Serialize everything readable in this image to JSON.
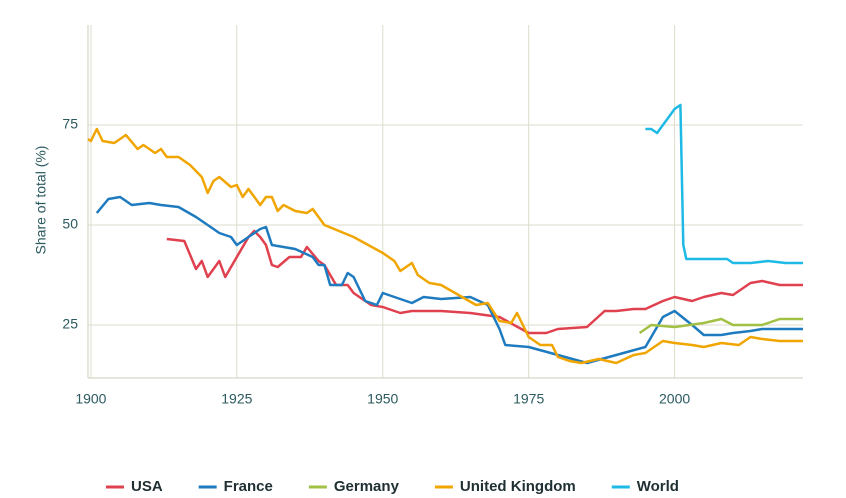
{
  "chart_data": {
    "type": "line",
    "y_label": "Share of total (%)",
    "xlim": [
      1899.5,
      2022
    ],
    "ylim": [
      11.75,
      100
    ],
    "xticks": [
      1900,
      1925,
      1950,
      1975,
      2000
    ],
    "yticks": [
      25,
      50,
      75
    ],
    "grid": true,
    "legend": "bottom",
    "series": [
      {
        "name": "USA",
        "color": "#e0414f",
        "x": [
          1913,
          1916,
          1918,
          1919,
          1920,
          1922,
          1923,
          1925,
          1927,
          1928,
          1929,
          1930,
          1931,
          1932,
          1934,
          1936,
          1937,
          1939,
          1940,
          1942,
          1944,
          1945,
          1948,
          1950,
          1953,
          1955,
          1960,
          1965,
          1970,
          1975,
          1978,
          1980,
          1985,
          1988,
          1990,
          1993,
          1995,
          1998,
          2000,
          2003,
          2005,
          2008,
          2010,
          2013,
          2015,
          2018,
          2022
        ],
        "values": [
          46.5,
          46,
          39,
          41,
          37,
          41,
          37,
          42,
          47,
          48.5,
          47,
          45,
          40,
          39.5,
          42,
          42,
          44.5,
          41,
          40,
          35,
          35,
          33,
          30,
          29.5,
          28,
          28.5,
          28.5,
          28,
          27,
          23,
          23,
          24,
          24.5,
          28.5,
          28.5,
          29,
          29,
          31,
          32,
          31,
          32,
          33,
          32.5,
          35.5,
          36,
          35,
          35
        ]
      },
      {
        "name": "France",
        "color": "#1f7bbf",
        "x": [
          1901,
          1903,
          1905,
          1907,
          1910,
          1912,
          1915,
          1918,
          1920,
          1922,
          1924,
          1925,
          1927,
          1929,
          1930,
          1931,
          1935,
          1938,
          1939,
          1940,
          1941,
          1943,
          1944,
          1945,
          1947,
          1949,
          1950,
          1952,
          1955,
          1957,
          1960,
          1965,
          1968,
          1970,
          1971,
          1975,
          1980,
          1985,
          1990,
          1995,
          1998,
          2000,
          2003,
          2005,
          2008,
          2010,
          2013,
          2015,
          2022
        ],
        "values": [
          53,
          56.5,
          57,
          55,
          55.5,
          55,
          54.5,
          52,
          50,
          48,
          47,
          45,
          47,
          49,
          49.5,
          45,
          44,
          42,
          40,
          40,
          35,
          35,
          38,
          37,
          31,
          30,
          33,
          32,
          30.5,
          32,
          31.5,
          32,
          30,
          24,
          20,
          19.5,
          17.5,
          15.5,
          17.5,
          19.5,
          27,
          28.5,
          25,
          22.5,
          22.5,
          23,
          23.5,
          24,
          24
        ]
      },
      {
        "name": "Germany",
        "color": "#a2c043",
        "x": [
          1994,
          1996,
          2000,
          2005,
          2008,
          2010,
          2015,
          2018,
          2022
        ],
        "values": [
          23,
          25,
          24.5,
          25.5,
          26.5,
          25,
          25,
          26.5,
          26.5
        ]
      },
      {
        "name": "United Kingdom",
        "color": "#f0a500",
        "x": [
          1899.5,
          1900,
          1901,
          1902,
          1904,
          1906,
          1908,
          1909,
          1911,
          1912,
          1913,
          1915,
          1917,
          1919,
          1920,
          1921,
          1922,
          1924,
          1925,
          1926,
          1927,
          1929,
          1930,
          1931,
          1932,
          1933,
          1935,
          1937,
          1938,
          1940,
          1945,
          1950,
          1952,
          1953,
          1955,
          1956,
          1958,
          1960,
          1963,
          1966,
          1968,
          1970,
          1972,
          1973,
          1975,
          1977,
          1979,
          1980,
          1982,
          1984,
          1987,
          1990,
          1993,
          1995,
          1998,
          2000,
          2003,
          2005,
          2008,
          2011,
          2013,
          2015,
          2018,
          2022
        ],
        "values": [
          71.5,
          71,
          74,
          71,
          70.5,
          72.5,
          69,
          70,
          68,
          69,
          67,
          67,
          65,
          62,
          58,
          61,
          62,
          59.5,
          60,
          57,
          59,
          55,
          57,
          57,
          53.5,
          55,
          53.5,
          53,
          54,
          50,
          47,
          43,
          41,
          38.5,
          40.5,
          37.5,
          35.5,
          35,
          32.5,
          30,
          30.5,
          26,
          25.5,
          28,
          22,
          20,
          20,
          17,
          16,
          15.5,
          16.5,
          15.5,
          17.5,
          18,
          21,
          20.5,
          20,
          19.5,
          20.5,
          20,
          22,
          21.5,
          21,
          21
        ]
      },
      {
        "name": "World",
        "color": "#1ebae5",
        "x": [
          1995,
          1996,
          1997,
          1998,
          1999,
          2000,
          2001,
          2001.5,
          2002,
          2005,
          2009,
          2010,
          2013,
          2016,
          2019,
          2022
        ],
        "values": [
          74,
          74,
          73,
          75,
          77,
          79,
          80,
          45,
          41.5,
          41.5,
          41.5,
          40.5,
          40.5,
          41,
          40.5,
          40.5
        ]
      }
    ]
  }
}
